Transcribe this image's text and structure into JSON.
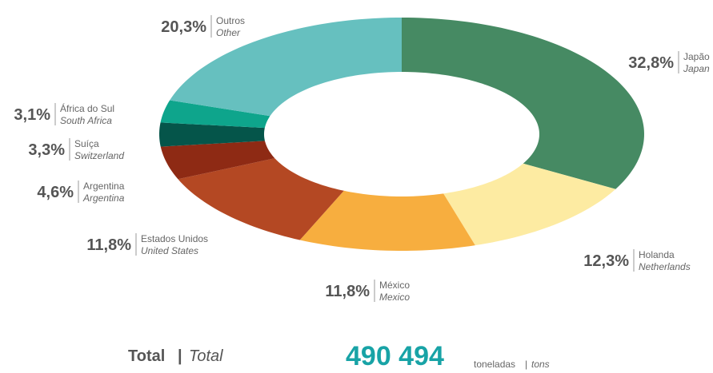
{
  "chart_data": {
    "type": "donut",
    "categories": [
      "Japão",
      "Holanda",
      "México",
      "Estados Unidos",
      "Argentina",
      "Suíça",
      "África do Sul",
      "Outros"
    ],
    "categories_en": [
      "Japan",
      "Netherlands",
      "Mexico",
      "United States",
      "Argentina",
      "Switzerland",
      "South Africa",
      "Other"
    ],
    "values": [
      32.8,
      12.3,
      11.8,
      11.8,
      4.6,
      3.3,
      3.1,
      20.3
    ],
    "value_labels": [
      "32,8%",
      "12,3%",
      "11,8%",
      "11,8%",
      "4,6%",
      "3,3%",
      "3,1%",
      "20,3%"
    ],
    "colors": [
      "#468a63",
      "#fdeba2",
      "#f7ae3f",
      "#b44823",
      "#8e2a14",
      "#05554a",
      "#0ea58c",
      "#66c0bf"
    ]
  },
  "footer": {
    "total_pt": "Total",
    "separator": "|",
    "total_en": "Total",
    "total_label": "490 494",
    "unit_pt": "toneladas",
    "unit_separator": "|",
    "unit_en": "tons"
  }
}
